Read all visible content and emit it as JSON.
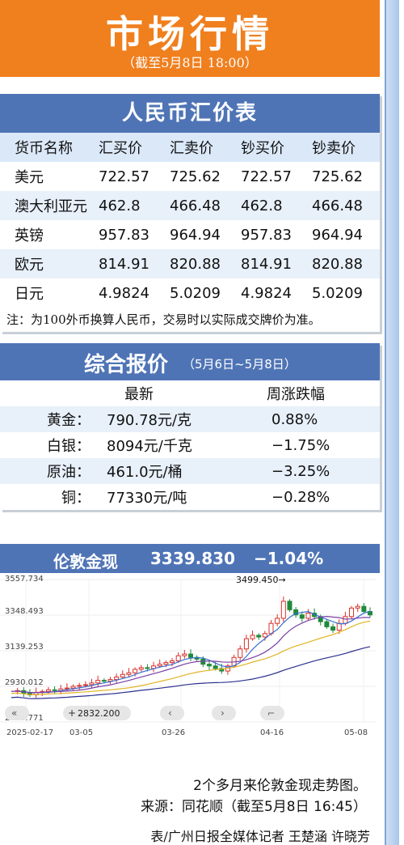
{
  "header": {
    "title": "市场行情",
    "subtitle": "（截至5月8日 18:00）"
  },
  "exchange": {
    "title": "人民币汇价表",
    "columns": [
      "货币名称",
      "汇买价",
      "汇卖价",
      "钞买价",
      "钞卖价"
    ],
    "rows": [
      [
        "美元",
        "722.57",
        "725.62",
        "722.57",
        "725.62"
      ],
      [
        "澳大利亚元",
        "462.8",
        "466.48",
        "462.8",
        "466.48"
      ],
      [
        "英镑",
        "957.83",
        "964.94",
        "957.83",
        "964.94"
      ],
      [
        "欧元",
        "814.91",
        "820.88",
        "814.91",
        "820.88"
      ],
      [
        "日元",
        "4.9824",
        "5.0209",
        "4.9824",
        "5.0209"
      ]
    ],
    "note": "注：为100外币换算人民币，交易时以实际成交牌价为准。"
  },
  "quotes": {
    "title": "综合报价",
    "range": "（5月6日~5月8日）",
    "col_latest": "最新",
    "col_change": "周涨跌幅",
    "rows": [
      {
        "name": "黄金：",
        "latest": "790.78元/克",
        "change": "0.88%"
      },
      {
        "name": "白银：",
        "latest": "8094元/千克",
        "change": "−1.75%"
      },
      {
        "name": "原油：",
        "latest": "461.0元/桶",
        "change": "−3.25%"
      },
      {
        "name": "铜：",
        "latest": "77330元/吨",
        "change": "−0.28%"
      }
    ]
  },
  "chart_header": {
    "name": "伦敦金现",
    "price": "3339.830",
    "change": "−1.04%"
  },
  "chart_data": {
    "type": "candlestick",
    "yticks": [
      "3557.734",
      "3348.493",
      "3139.253",
      "2930.012",
      "2720.771"
    ],
    "xticks": [
      "2025-02-17",
      "03-05",
      "03-26",
      "04-16",
      "05-08"
    ],
    "ylim": [
      2720.771,
      3557.734
    ],
    "annotation_high": "3499.450→",
    "annotation_low": "2832.200",
    "colors": {
      "up": "#d9312b",
      "down": "#1f8a3a",
      "ma5": "#3a6fd0",
      "ma10": "#7a3fa5",
      "ma20": "#e2b424",
      "ma60": "#2b2f8f"
    }
  },
  "captions": {
    "line1": "2个多月来伦敦金现走势图。",
    "line2": "来源：同花顺（截至5月8日 16:45）"
  },
  "credit": "表/广州日报全媒体记者 王楚涵 许晓芳"
}
